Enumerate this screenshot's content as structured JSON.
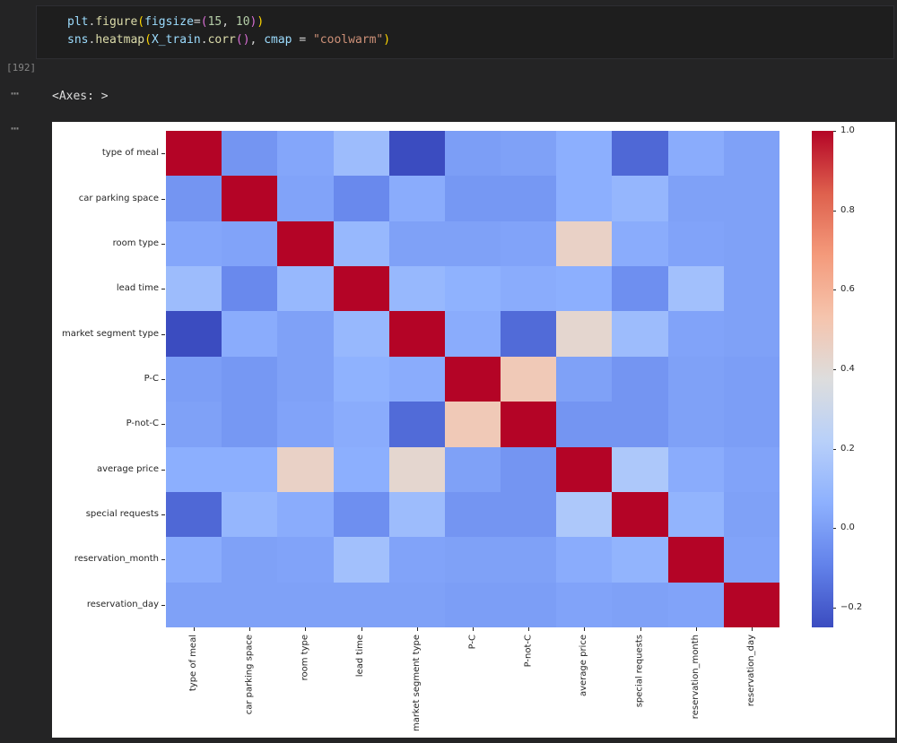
{
  "notebook": {
    "execution_count": "[192]",
    "ellipsis_glyph": "⋯",
    "output_text": "<Axes: >",
    "code_lines": [
      [
        {
          "t": "plt",
          "c": "var"
        },
        {
          "t": ".",
          "c": "plain"
        },
        {
          "t": "figure",
          "c": "func"
        },
        {
          "t": "(",
          "c": "br1"
        },
        {
          "t": "figsize",
          "c": "param"
        },
        {
          "t": "=",
          "c": "plain"
        },
        {
          "t": "(",
          "c": "br2"
        },
        {
          "t": "15",
          "c": "num"
        },
        {
          "t": ", ",
          "c": "plain"
        },
        {
          "t": "10",
          "c": "num"
        },
        {
          "t": ")",
          "c": "br2"
        },
        {
          "t": ")",
          "c": "br1"
        }
      ],
      [
        {
          "t": "sns",
          "c": "var"
        },
        {
          "t": ".",
          "c": "plain"
        },
        {
          "t": "heatmap",
          "c": "func"
        },
        {
          "t": "(",
          "c": "br1"
        },
        {
          "t": "X_train",
          "c": "var"
        },
        {
          "t": ".",
          "c": "plain"
        },
        {
          "t": "corr",
          "c": "func"
        },
        {
          "t": "(",
          "c": "br2"
        },
        {
          "t": ")",
          "c": "br2"
        },
        {
          "t": ", ",
          "c": "plain"
        },
        {
          "t": "cmap",
          "c": "param"
        },
        {
          "t": " = ",
          "c": "plain"
        },
        {
          "t": "\"coolwarm\"",
          "c": "str"
        },
        {
          "t": ")",
          "c": "br1"
        }
      ]
    ]
  },
  "chart_data": {
    "type": "heatmap",
    "title": "",
    "cmap": "coolwarm",
    "legend_position": "right-colorbar",
    "vmin": -0.25,
    "vmax": 1.0,
    "categories": [
      "type of meal",
      "car parking space",
      "room type",
      "lead time",
      "market segment type",
      "P-C",
      "P-not-C",
      "average price",
      "special requests",
      "reservation_month",
      "reservation_day"
    ],
    "matrix": [
      [
        1.0,
        -0.03,
        0.03,
        0.12,
        -0.25,
        0.0,
        0.01,
        0.06,
        -0.17,
        0.05,
        0.01
      ],
      [
        -0.03,
        1.0,
        0.02,
        -0.07,
        0.05,
        -0.02,
        -0.02,
        0.06,
        0.09,
        0.01,
        0.01
      ],
      [
        0.03,
        0.02,
        1.0,
        0.1,
        0.01,
        0.01,
        0.02,
        0.45,
        0.05,
        0.02,
        0.01
      ],
      [
        0.12,
        -0.07,
        0.1,
        1.0,
        0.1,
        0.07,
        0.05,
        0.06,
        -0.05,
        0.14,
        0.01
      ],
      [
        -0.25,
        0.05,
        0.01,
        0.1,
        1.0,
        0.05,
        -0.16,
        0.42,
        0.12,
        0.02,
        0.01
      ],
      [
        0.0,
        -0.02,
        0.01,
        0.07,
        0.05,
        1.0,
        0.5,
        0.01,
        -0.03,
        0.01,
        0.0
      ],
      [
        0.01,
        -0.02,
        0.02,
        0.05,
        -0.16,
        0.5,
        1.0,
        -0.03,
        -0.03,
        0.01,
        0.0
      ],
      [
        0.06,
        0.06,
        0.45,
        0.06,
        0.42,
        0.01,
        -0.03,
        1.0,
        0.18,
        0.05,
        0.02
      ],
      [
        -0.17,
        0.09,
        0.05,
        -0.05,
        0.12,
        -0.03,
        -0.03,
        0.18,
        1.0,
        0.08,
        0.01
      ],
      [
        0.05,
        0.01,
        0.02,
        0.14,
        0.02,
        0.01,
        0.01,
        0.05,
        0.08,
        1.0,
        0.02
      ],
      [
        0.01,
        0.01,
        0.01,
        0.01,
        0.01,
        0.0,
        0.0,
        0.02,
        0.01,
        0.02,
        1.0
      ]
    ],
    "colorbar_ticks": [
      1.0,
      0.8,
      0.6,
      0.4,
      0.2,
      0.0,
      -0.2
    ],
    "colorbar_tick_labels": [
      "1.0",
      "0.8",
      "0.6",
      "0.4",
      "0.2",
      "0.0",
      "−0.2"
    ]
  }
}
